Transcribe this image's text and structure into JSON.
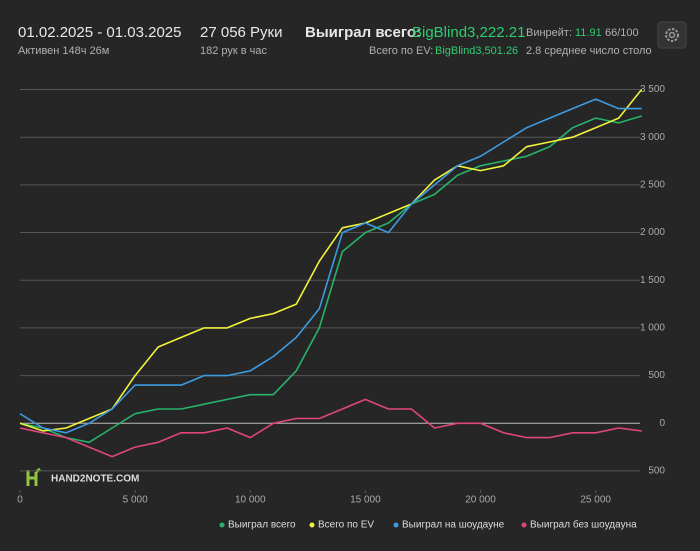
{
  "header": {
    "period": "01.02.2025 - 01.03.2025",
    "active": "Активен 148ч 26м",
    "hands": "27 056 Руки",
    "rate": "182 рук в час",
    "won_label": "Выиграл всего:",
    "won_value": "BigBlind3,222.21",
    "ev_label": "Всего по EV:",
    "ev_value": "BigBlind3,501.26",
    "winrate_label": "Винрейт:",
    "winrate_value": "11.91",
    "winrate_score": "66/100",
    "tables": "2.8 среднее число столо",
    "logo": "HAND2NOTE.COM"
  },
  "chart_data": {
    "type": "line",
    "x": [
      0,
      1000,
      2000,
      3000,
      4000,
      5000,
      6000,
      7000,
      8000,
      9000,
      10000,
      11000,
      12000,
      13000,
      14000,
      15000,
      16000,
      17000,
      18000,
      19000,
      20000,
      21000,
      22000,
      23000,
      24000,
      25000,
      26000,
      27000
    ],
    "series": [
      {
        "name": "Выиграл всего",
        "color": "#27b36a",
        "values": [
          0,
          -50,
          -150,
          -200,
          -50,
          100,
          150,
          150,
          200,
          250,
          300,
          300,
          550,
          1000,
          1800,
          2000,
          2100,
          2300,
          2400,
          2600,
          2700,
          2750,
          2800,
          2900,
          3100,
          3200,
          3150,
          3222
        ]
      },
      {
        "name": "Всего по EV",
        "color": "#f2f23c",
        "values": [
          0,
          -80,
          -50,
          50,
          150,
          500,
          800,
          900,
          1000,
          1000,
          1100,
          1150,
          1250,
          1700,
          2050,
          2100,
          2200,
          2300,
          2550,
          2700,
          2650,
          2700,
          2900,
          2950,
          3000,
          3100,
          3200,
          3501
        ]
      },
      {
        "name": "Выиграл на шоудауне",
        "color": "#3d9be0",
        "values": [
          100,
          -50,
          -100,
          0,
          150,
          400,
          400,
          400,
          500,
          500,
          550,
          700,
          900,
          1200,
          2000,
          2100,
          2000,
          2300,
          2500,
          2700,
          2800,
          2950,
          3100,
          3200,
          3300,
          3400,
          3300,
          3300
        ]
      },
      {
        "name": "Выиграл без шоудауна",
        "color": "#e0457b",
        "values": [
          -50,
          -100,
          -150,
          -250,
          -350,
          -250,
          -200,
          -100,
          -100,
          -50,
          -150,
          0,
          50,
          50,
          150,
          250,
          150,
          150,
          -50,
          0,
          0,
          -100,
          -150,
          -150,
          -100,
          -100,
          -50,
          -80
        ]
      }
    ],
    "xlim": [
      0,
      27056
    ],
    "xticks": [
      0,
      {
        "value": 5000,
        "label": "5 000"
      },
      {
        "value": 10000,
        "label": "10 000"
      },
      {
        "value": 15000,
        "label": "15 000"
      },
      {
        "value": 20000,
        "label": "20 000"
      },
      {
        "value": 25000,
        "label": "25 000"
      }
    ],
    "ylim": [
      -700,
      3600
    ],
    "yticks": [
      {
        "value": -500,
        "label": "500"
      },
      0,
      500,
      {
        "value": 1000,
        "label": "1 000"
      },
      {
        "value": 1500,
        "label": "1 500"
      },
      {
        "value": 2000,
        "label": "2 000"
      },
      {
        "value": 2500,
        "label": "2 500"
      },
      {
        "value": 3000,
        "label": "3 000"
      },
      {
        "value": 3500,
        "label": "3 500"
      }
    ],
    "grid": true
  }
}
